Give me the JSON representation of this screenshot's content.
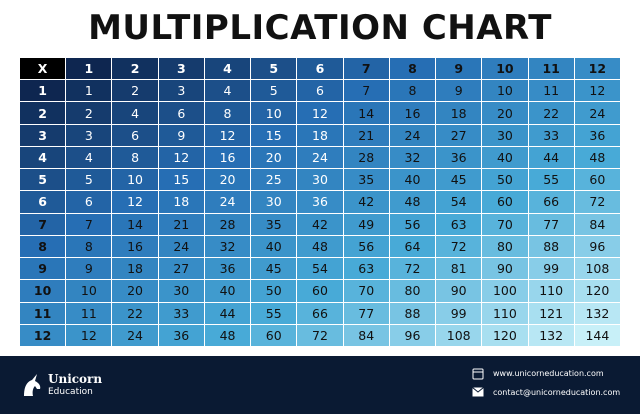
{
  "header": {
    "title": "MULTIPLICATION CHART"
  },
  "table": {
    "header": [
      "X",
      1,
      2,
      3,
      4,
      5,
      6,
      7,
      8,
      9,
      10,
      11,
      12
    ],
    "rows": [
      [
        1,
        1,
        2,
        3,
        4,
        5,
        6,
        7,
        8,
        9,
        10,
        11,
        12
      ],
      [
        2,
        2,
        4,
        6,
        8,
        10,
        12,
        14,
        16,
        18,
        20,
        22,
        24
      ],
      [
        3,
        3,
        6,
        9,
        12,
        15,
        18,
        21,
        24,
        27,
        30,
        33,
        36
      ],
      [
        4,
        4,
        8,
        12,
        16,
        20,
        24,
        28,
        32,
        36,
        40,
        44,
        48
      ],
      [
        5,
        5,
        10,
        15,
        20,
        25,
        30,
        35,
        40,
        45,
        50,
        55,
        60
      ],
      [
        6,
        6,
        12,
        18,
        24,
        30,
        36,
        42,
        48,
        54,
        60,
        66,
        72
      ],
      [
        7,
        7,
        14,
        21,
        28,
        35,
        42,
        49,
        56,
        63,
        70,
        77,
        84
      ],
      [
        8,
        8,
        16,
        24,
        32,
        40,
        48,
        56,
        64,
        72,
        80,
        88,
        96
      ],
      [
        9,
        9,
        18,
        27,
        36,
        45,
        54,
        63,
        72,
        81,
        90,
        99,
        108
      ],
      [
        10,
        10,
        20,
        30,
        40,
        50,
        60,
        70,
        80,
        90,
        100,
        110,
        120
      ],
      [
        11,
        11,
        22,
        33,
        44,
        55,
        66,
        77,
        88,
        99,
        110,
        121,
        132
      ],
      [
        12,
        12,
        24,
        36,
        48,
        60,
        72,
        84,
        96,
        108,
        120,
        132,
        144
      ]
    ]
  },
  "footer": {
    "brand": "Unicorn",
    "brand_sub": "Education",
    "website": "www.unicorneducation.com",
    "email": "contact@unicorneducation.com"
  }
}
